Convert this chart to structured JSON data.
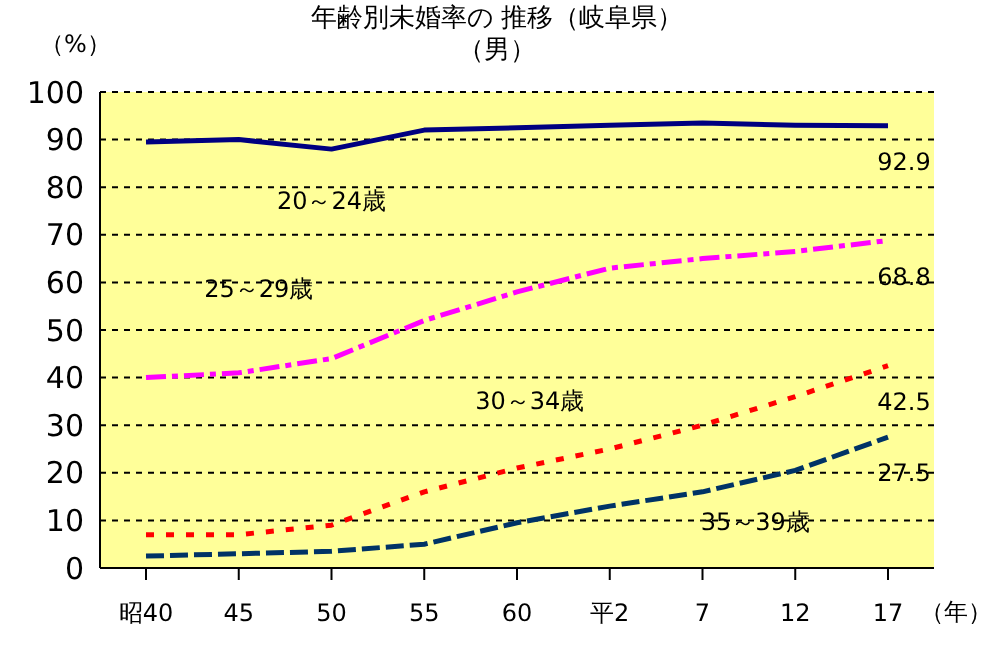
{
  "chart_data": {
    "type": "line",
    "title": "年齢別未婚率の 推移（岐阜県）",
    "subtitle": "（男）",
    "ylabel": "（%）",
    "xlabel": "（年）",
    "categories": [
      "昭40",
      "45",
      "50",
      "55",
      "60",
      "平2",
      "7",
      "12",
      "17"
    ],
    "series": [
      {
        "name": "20～24歳",
        "color": "#000080",
        "line_style": "solid",
        "values": [
          89.5,
          90,
          88,
          92,
          92.5,
          93,
          93.5,
          93,
          92.9
        ],
        "value_labels": [
          null,
          null,
          null,
          null,
          null,
          null,
          null,
          null,
          "92.9"
        ]
      },
      {
        "name": "25～29歳",
        "color": "#ff00ff",
        "line_style": "dashdot",
        "values": [
          40,
          41,
          44,
          52,
          58,
          63,
          65,
          66.5,
          68.8
        ],
        "value_labels": [
          null,
          null,
          null,
          null,
          null,
          null,
          null,
          null,
          "68.8"
        ]
      },
      {
        "name": "30～34歳",
        "color": "#ff0000",
        "line_style": "dotted",
        "values": [
          7,
          7,
          9,
          16,
          21,
          25,
          30,
          36,
          42.5
        ],
        "value_labels": [
          null,
          null,
          null,
          null,
          null,
          null,
          null,
          null,
          "42.5"
        ]
      },
      {
        "name": "35～39歳",
        "color": "#003366",
        "line_style": "dashed",
        "values": [
          2.5,
          3,
          3.5,
          5,
          9.5,
          13,
          16,
          20.5,
          27.5
        ],
        "value_labels": [
          null,
          null,
          null,
          null,
          null,
          null,
          null,
          null,
          "27.5"
        ]
      }
    ],
    "ylim": [
      0,
      100
    ],
    "yticks": [
      0,
      10,
      20,
      30,
      40,
      50,
      60,
      70,
      80,
      90,
      100
    ],
    "grid": "y",
    "marker": "none"
  }
}
